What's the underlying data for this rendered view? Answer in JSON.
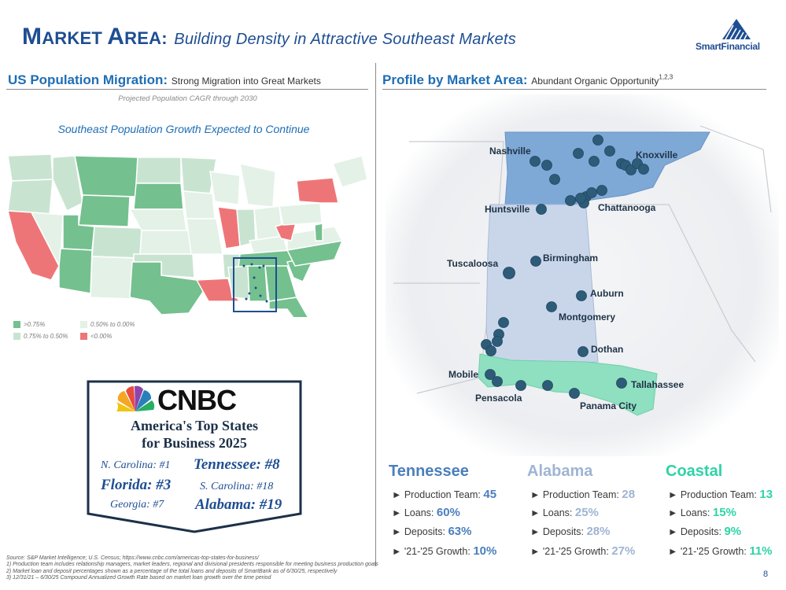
{
  "header": {
    "title_main": "M",
    "title_main_rest": "ARKET ",
    "title_main2": "A",
    "title_main2_rest": "REA:",
    "title_sub": "Building Density in Attractive Southeast Markets",
    "logo_text": "SmartFinancial"
  },
  "left": {
    "heading": "US Population Migration:",
    "heading_note": "Strong Migration into Great Markets",
    "projection_caption": "Projected Population CAGR through 2030",
    "map_caption": "Southeast Population Growth Expected to Continue",
    "legend": [
      {
        "label": ">0.75%",
        "color": "#74c08f"
      },
      {
        "label": "0.50% to 0.00%",
        "color": "#e3f1e7"
      },
      {
        "label": "0.75% to 0.50%",
        "color": "#c8e4d1"
      },
      {
        "label": "<0.00%",
        "color": "#ee7577"
      }
    ],
    "cnbc": {
      "brand": "CNBC",
      "title_line1": "America's Top States",
      "title_line2": "for Business 2025",
      "rankings": [
        {
          "label": "N. Carolina: #1",
          "style": "small"
        },
        {
          "label": "Tennessee: #8",
          "style": "large"
        },
        {
          "label": "Florida: #3",
          "style": "large"
        },
        {
          "label": "S. Carolina: #18",
          "style": "small"
        },
        {
          "label": "Georgia: #7",
          "style": "small"
        },
        {
          "label": "Alabama: #19",
          "style": "large"
        }
      ]
    }
  },
  "right": {
    "heading": "Profile by Market Area:",
    "heading_note": "Abundant Organic Opportunity",
    "heading_sup": "1,2,3",
    "cities": {
      "nashville": "Nashville",
      "knoxville": "Knoxville",
      "chattanooga": "Chattanooga",
      "huntsville": "Huntsville",
      "tuscaloosa": "Tuscaloosa",
      "birmingham": "Birmingham",
      "auburn": "Auburn",
      "montgomery": "Montgomery",
      "dothan": "Dothan",
      "mobile": "Mobile",
      "pensacola": "Pensacola",
      "tallahassee": "Tallahassee",
      "panama_city": "Panama City"
    },
    "markets": [
      {
        "name": "Tennessee",
        "color": "#4a7fbd",
        "team_label": "► Production Team:",
        "team": "45",
        "loans_label": "► Loans:",
        "loans": "60%",
        "deposits_label": "► Deposits:",
        "deposits": "63%",
        "growth_label": "► '21-'25 Growth:",
        "growth": "10%"
      },
      {
        "name": "Alabama",
        "color": "#9fb4d3",
        "team_label": "► Production Team:",
        "team": "28",
        "loans_label": "► Loans:",
        "loans": "25%",
        "deposits_label": "► Deposits:",
        "deposits": "28%",
        "growth_label": "► '21-'25 Growth:",
        "growth": "27%"
      },
      {
        "name": "Coastal",
        "color": "#2ed3a7",
        "team_label": "► Production Team:",
        "team": "13",
        "loans_label": "► Loans:",
        "loans": "15%",
        "deposits_label": "► Deposits:",
        "deposits": "9%",
        "growth_label": "► '21-'25 Growth:",
        "growth": "11%"
      }
    ]
  },
  "footnotes": [
    "Source: S&P Market Intelligence; U.S. Census; https://www.cnbc.com/americas-top-states-for-business/",
    "1)       Production team includes relationship managers, market leaders, regional and divisional presidents responsible for meeting business production goals",
    "2)       Market loan and deposit percentages shown as a percentage of the total loans and deposits of SmartBank as of 6/30/25, respectively",
    "3)       12/31/21 – 6/30/25 Compound Annualized Growth Rate based on market loan growth over the time period"
  ],
  "page_number": "8"
}
